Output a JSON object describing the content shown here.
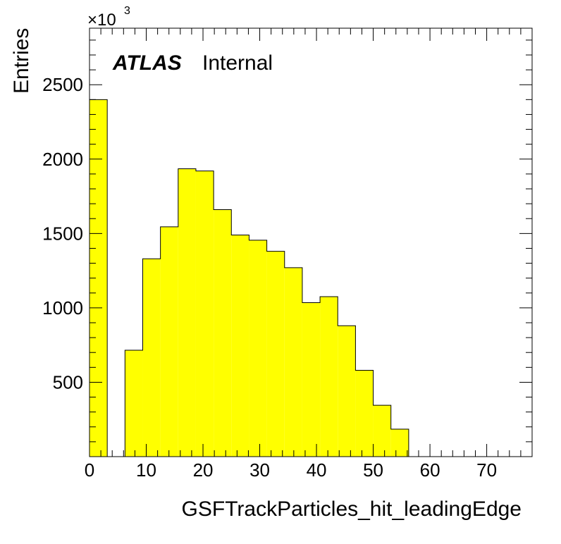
{
  "chart_data": {
    "type": "bar",
    "xlabel": "GSFTrackParticles_hit_leadingEdge",
    "ylabel": "Entries",
    "y_multiplier": {
      "base": "×10",
      "exponent": "3"
    },
    "annotation": {
      "experiment": "ATLAS",
      "status": "Internal"
    },
    "xlim": [
      0,
      78
    ],
    "ylim": [
      0,
      2880
    ],
    "x_ticks": [
      0,
      10,
      20,
      30,
      40,
      50,
      60,
      70
    ],
    "y_ticks": [
      500,
      1000,
      1500,
      2000,
      2500
    ],
    "bin_width": 3.125,
    "bin_edges_start": 0,
    "values": [
      2400,
      0,
      715,
      1330,
      1545,
      1935,
      1920,
      1660,
      1490,
      1455,
      1380,
      1270,
      1035,
      1075,
      880,
      580,
      345,
      185,
      0,
      0,
      0,
      0,
      0,
      0
    ],
    "fill_color": "#ffff00",
    "edge_color": "#000000"
  }
}
